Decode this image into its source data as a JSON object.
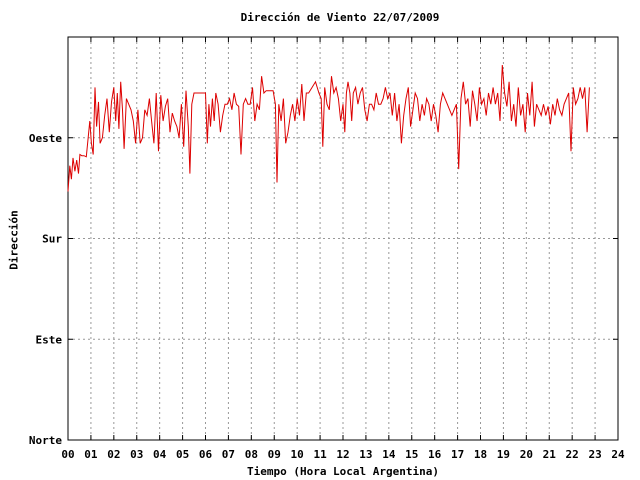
{
  "chart_data": {
    "type": "line",
    "title": "Dirección de Viento 22/07/2009",
    "xlabel": "Tiempo (Hora Local Argentina)",
    "ylabel": "Dirección",
    "xlim": [
      0,
      24
    ],
    "ylim": [
      0,
      360
    ],
    "x_ticks": [
      "00",
      "01",
      "02",
      "03",
      "04",
      "05",
      "06",
      "07",
      "08",
      "09",
      "10",
      "11",
      "12",
      "13",
      "14",
      "15",
      "16",
      "17",
      "18",
      "19",
      "20",
      "21",
      "22",
      "23",
      "24"
    ],
    "y_ticks": [
      {
        "value": 0,
        "label": "Norte"
      },
      {
        "value": 90,
        "label": "Este"
      },
      {
        "value": 180,
        "label": "Sur"
      },
      {
        "value": 270,
        "label": "Oeste"
      }
    ],
    "grid": true,
    "line_color": "#dd0000",
    "series": [
      {
        "values": [
          [
            0.0,
            222
          ],
          [
            0.08,
            245
          ],
          [
            0.15,
            233
          ],
          [
            0.22,
            252
          ],
          [
            0.3,
            240
          ],
          [
            0.38,
            250
          ],
          [
            0.46,
            238
          ],
          [
            0.52,
            255
          ],
          [
            0.6,
            254
          ],
          [
            0.7,
            254
          ],
          [
            0.8,
            253
          ],
          [
            0.95,
            285
          ],
          [
            1.02,
            265
          ],
          [
            1.1,
            255
          ],
          [
            1.18,
            315
          ],
          [
            1.25,
            280
          ],
          [
            1.33,
            302
          ],
          [
            1.4,
            265
          ],
          [
            1.5,
            270
          ],
          [
            1.6,
            290
          ],
          [
            1.7,
            305
          ],
          [
            1.8,
            275
          ],
          [
            1.9,
            302
          ],
          [
            2.0,
            315
          ],
          [
            2.08,
            285
          ],
          [
            2.15,
            310
          ],
          [
            2.22,
            278
          ],
          [
            2.3,
            320
          ],
          [
            2.38,
            295
          ],
          [
            2.45,
            260
          ],
          [
            2.55,
            305
          ],
          [
            2.65,
            300
          ],
          [
            2.75,
            295
          ],
          [
            2.85,
            285
          ],
          [
            2.95,
            265
          ],
          [
            3.05,
            295
          ],
          [
            3.15,
            265
          ],
          [
            3.25,
            270
          ],
          [
            3.35,
            295
          ],
          [
            3.45,
            290
          ],
          [
            3.55,
            305
          ],
          [
            3.65,
            285
          ],
          [
            3.75,
            265
          ],
          [
            3.85,
            310
          ],
          [
            3.95,
            258
          ],
          [
            4.05,
            308
          ],
          [
            4.15,
            285
          ],
          [
            4.25,
            298
          ],
          [
            4.35,
            305
          ],
          [
            4.45,
            275
          ],
          [
            4.55,
            292
          ],
          [
            4.65,
            285
          ],
          [
            4.75,
            280
          ],
          [
            4.85,
            270
          ],
          [
            4.95,
            300
          ],
          [
            5.05,
            262
          ],
          [
            5.15,
            312
          ],
          [
            5.25,
            280
          ],
          [
            5.32,
            238
          ],
          [
            5.4,
            300
          ],
          [
            5.5,
            310
          ],
          [
            5.6,
            310
          ],
          [
            5.7,
            310
          ],
          [
            5.8,
            310
          ],
          [
            5.9,
            310
          ],
          [
            6.0,
            310
          ],
          [
            6.08,
            265
          ],
          [
            6.15,
            300
          ],
          [
            6.22,
            280
          ],
          [
            6.3,
            305
          ],
          [
            6.38,
            285
          ],
          [
            6.45,
            310
          ],
          [
            6.55,
            300
          ],
          [
            6.65,
            275
          ],
          [
            6.75,
            290
          ],
          [
            6.85,
            300
          ],
          [
            6.95,
            300
          ],
          [
            7.05,
            305
          ],
          [
            7.15,
            295
          ],
          [
            7.25,
            310
          ],
          [
            7.35,
            300
          ],
          [
            7.45,
            298
          ],
          [
            7.55,
            255
          ],
          [
            7.65,
            300
          ],
          [
            7.75,
            305
          ],
          [
            7.85,
            300
          ],
          [
            7.95,
            300
          ],
          [
            8.05,
            315
          ],
          [
            8.15,
            285
          ],
          [
            8.25,
            300
          ],
          [
            8.35,
            295
          ],
          [
            8.45,
            325
          ],
          [
            8.55,
            310
          ],
          [
            8.65,
            312
          ],
          [
            8.75,
            312
          ],
          [
            8.85,
            312
          ],
          [
            8.95,
            312
          ],
          [
            9.05,
            300
          ],
          [
            9.12,
            230
          ],
          [
            9.2,
            300
          ],
          [
            9.3,
            285
          ],
          [
            9.4,
            305
          ],
          [
            9.5,
            265
          ],
          [
            9.6,
            275
          ],
          [
            9.7,
            290
          ],
          [
            9.8,
            300
          ],
          [
            9.9,
            285
          ],
          [
            10.0,
            305
          ],
          [
            10.1,
            290
          ],
          [
            10.2,
            318
          ],
          [
            10.3,
            285
          ],
          [
            10.4,
            310
          ],
          [
            10.5,
            310
          ],
          [
            10.65,
            315
          ],
          [
            10.8,
            320
          ],
          [
            10.95,
            310
          ],
          [
            11.05,
            305
          ],
          [
            11.12,
            262
          ],
          [
            11.2,
            315
          ],
          [
            11.3,
            300
          ],
          [
            11.4,
            295
          ],
          [
            11.5,
            325
          ],
          [
            11.6,
            310
          ],
          [
            11.7,
            315
          ],
          [
            11.8,
            305
          ],
          [
            11.9,
            285
          ],
          [
            12.0,
            300
          ],
          [
            12.08,
            275
          ],
          [
            12.15,
            310
          ],
          [
            12.22,
            320
          ],
          [
            12.3,
            310
          ],
          [
            12.38,
            285
          ],
          [
            12.45,
            310
          ],
          [
            12.55,
            315
          ],
          [
            12.65,
            300
          ],
          [
            12.75,
            310
          ],
          [
            12.85,
            315
          ],
          [
            12.95,
            295
          ],
          [
            13.05,
            285
          ],
          [
            13.15,
            300
          ],
          [
            13.25,
            300
          ],
          [
            13.35,
            295
          ],
          [
            13.45,
            310
          ],
          [
            13.55,
            300
          ],
          [
            13.65,
            300
          ],
          [
            13.75,
            305
          ],
          [
            13.85,
            315
          ],
          [
            13.95,
            305
          ],
          [
            14.05,
            310
          ],
          [
            14.15,
            290
          ],
          [
            14.25,
            310
          ],
          [
            14.35,
            285
          ],
          [
            14.45,
            300
          ],
          [
            14.55,
            265
          ],
          [
            14.65,
            290
          ],
          [
            14.75,
            305
          ],
          [
            14.85,
            315
          ],
          [
            14.95,
            280
          ],
          [
            15.05,
            295
          ],
          [
            15.15,
            310
          ],
          [
            15.25,
            305
          ],
          [
            15.35,
            285
          ],
          [
            15.45,
            300
          ],
          [
            15.55,
            290
          ],
          [
            15.65,
            305
          ],
          [
            15.75,
            300
          ],
          [
            15.85,
            285
          ],
          [
            15.95,
            300
          ],
          [
            16.05,
            290
          ],
          [
            16.15,
            275
          ],
          [
            16.25,
            300
          ],
          [
            16.35,
            310
          ],
          [
            16.45,
            305
          ],
          [
            16.55,
            300
          ],
          [
            16.65,
            295
          ],
          [
            16.75,
            290
          ],
          [
            16.85,
            295
          ],
          [
            16.95,
            300
          ],
          [
            17.05,
            242
          ],
          [
            17.15,
            305
          ],
          [
            17.25,
            320
          ],
          [
            17.35,
            300
          ],
          [
            17.45,
            305
          ],
          [
            17.55,
            280
          ],
          [
            17.65,
            312
          ],
          [
            17.75,
            300
          ],
          [
            17.85,
            285
          ],
          [
            17.95,
            315
          ],
          [
            18.05,
            300
          ],
          [
            18.15,
            305
          ],
          [
            18.25,
            290
          ],
          [
            18.35,
            310
          ],
          [
            18.45,
            300
          ],
          [
            18.55,
            315
          ],
          [
            18.65,
            300
          ],
          [
            18.75,
            310
          ],
          [
            18.85,
            285
          ],
          [
            18.95,
            335
          ],
          [
            19.05,
            310
          ],
          [
            19.15,
            298
          ],
          [
            19.25,
            320
          ],
          [
            19.35,
            285
          ],
          [
            19.45,
            300
          ],
          [
            19.55,
            280
          ],
          [
            19.65,
            315
          ],
          [
            19.75,
            290
          ],
          [
            19.85,
            300
          ],
          [
            19.95,
            275
          ],
          [
            20.05,
            310
          ],
          [
            20.15,
            290
          ],
          [
            20.25,
            320
          ],
          [
            20.35,
            280
          ],
          [
            20.45,
            300
          ],
          [
            20.55,
            295
          ],
          [
            20.65,
            290
          ],
          [
            20.75,
            300
          ],
          [
            20.85,
            290
          ],
          [
            20.95,
            298
          ],
          [
            21.05,
            282
          ],
          [
            21.15,
            300
          ],
          [
            21.25,
            290
          ],
          [
            21.35,
            305
          ],
          [
            21.45,
            295
          ],
          [
            21.55,
            290
          ],
          [
            21.65,
            300
          ],
          [
            21.75,
            305
          ],
          [
            21.85,
            310
          ],
          [
            21.95,
            258
          ],
          [
            22.05,
            315
          ],
          [
            22.15,
            300
          ],
          [
            22.25,
            305
          ],
          [
            22.35,
            315
          ],
          [
            22.45,
            305
          ],
          [
            22.55,
            315
          ],
          [
            22.65,
            275
          ],
          [
            22.75,
            315
          ]
        ]
      }
    ]
  }
}
